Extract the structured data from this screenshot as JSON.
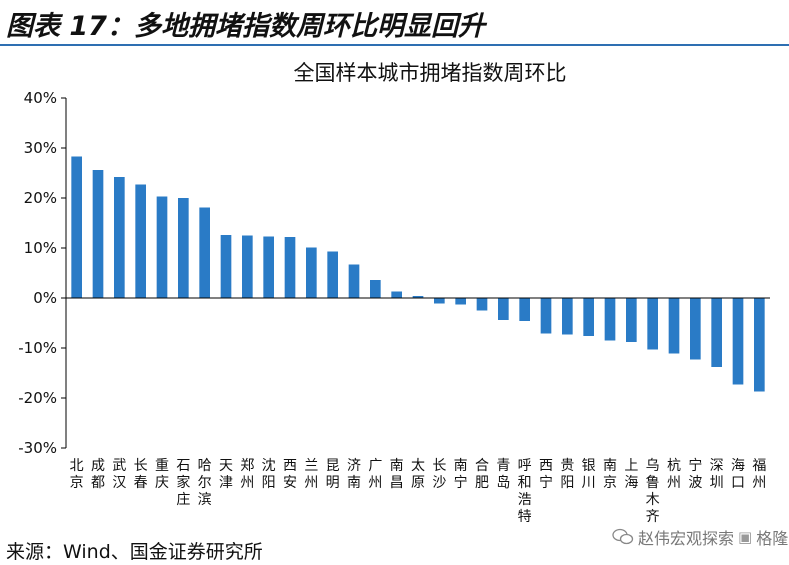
{
  "header": {
    "title": "图表 17：多地拥堵指数周环比明显回升"
  },
  "colors": {
    "accent": "#2e6fb2",
    "bar": "#2a7bc6"
  },
  "footer": {
    "source": "来源：Wind、国金证券研究所"
  },
  "watermark": {
    "text": "赵伟宏观探索",
    "logo_text": "格隆汇"
  },
  "chart_data": {
    "type": "bar",
    "title": "全国样本城市拥堵指数周环比",
    "ylim": [
      -30,
      40
    ],
    "yticks": [
      -30,
      -20,
      -10,
      0,
      10,
      20,
      30,
      40
    ],
    "ytick_labels": [
      "-30%",
      "-20%",
      "-10%",
      "0%",
      "10%",
      "20%",
      "30%",
      "40%"
    ],
    "categories": [
      "北京",
      "成都",
      "武汉",
      "长春",
      "重庆",
      "石家庄",
      "哈尔滨",
      "天津",
      "郑州",
      "沈阳",
      "西安",
      "兰州",
      "昆明",
      "济南",
      "广州",
      "南昌",
      "太原",
      "长沙",
      "南宁",
      "合肥",
      "青岛",
      "呼和浩特",
      "西宁",
      "贵阳",
      "银川",
      "南京",
      "上海",
      "乌鲁木齐",
      "杭州",
      "宁波",
      "深圳",
      "海口",
      "福州"
    ],
    "values": [
      28.3,
      25.6,
      24.2,
      22.7,
      20.3,
      20.0,
      18.1,
      12.6,
      12.5,
      12.3,
      12.2,
      10.1,
      9.3,
      6.7,
      3.6,
      1.3,
      0.4,
      -1.1,
      -1.3,
      -2.5,
      -4.4,
      -4.6,
      -7.1,
      -7.3,
      -7.6,
      -8.5,
      -8.8,
      -10.3,
      -11.1,
      -12.3,
      -13.8,
      -17.3,
      -18.7
    ],
    "grid": false,
    "legend": "none"
  }
}
